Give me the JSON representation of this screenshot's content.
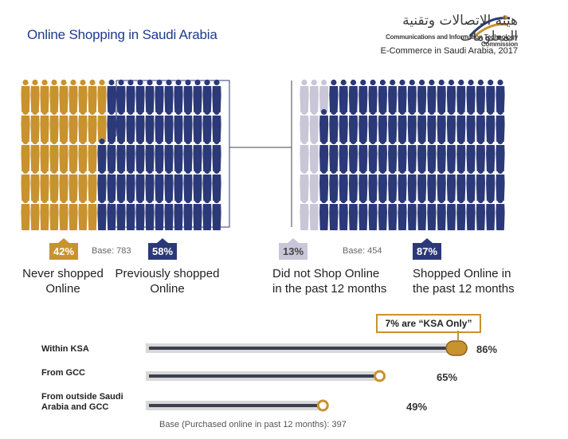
{
  "header": {
    "title": "Online Shopping in Saudi Arabia",
    "logo_arabic": "هيئة الاتصالات وتقنية المعلومات",
    "logo_english": "Communications and Information Technology Commission",
    "subtitle": "E-Commerce in Saudi Arabia, 2017"
  },
  "colors": {
    "gold": "#c8922e",
    "navy": "#2b3978",
    "light": "#c9c6d8",
    "track": "#d8d8d8",
    "bar": "#3c3f4e"
  },
  "left_panel": {
    "never": {
      "pct": "42%",
      "label_line1": "Never shopped",
      "label_line2": "Online"
    },
    "previously": {
      "pct": "58%",
      "label_line1": "Previously shopped",
      "label_line2": "Online"
    },
    "base": "Base: 783"
  },
  "right_panel": {
    "did_not": {
      "pct": "13%",
      "label_line1": "Did not Shop Online",
      "label_line2": "in the past 12 months"
    },
    "shopped": {
      "pct": "87%",
      "label_line1": "Shopped Online in",
      "label_line2": "the past 12 months"
    },
    "base": "Base: 454"
  },
  "callout": "7% are “KSA Only”",
  "chart_data": [
    {
      "type": "pictogram",
      "categories": [
        "Never shopped Online",
        "Previously shopped Online"
      ],
      "values": [
        42,
        58
      ],
      "unit": "%",
      "base": 783
    },
    {
      "type": "pictogram",
      "categories": [
        "Did not Shop Online in the past 12 months",
        "Shopped Online in the past 12 months"
      ],
      "values": [
        13,
        87
      ],
      "unit": "%",
      "base": 454
    },
    {
      "type": "bar",
      "orientation": "horizontal",
      "categories": [
        "Within KSA",
        "From GCC",
        "From outside Saudi Arabia and GCC"
      ],
      "values": [
        86,
        65,
        49
      ],
      "value_labels": [
        "86%",
        "65%",
        "49%"
      ],
      "xlim": [
        0,
        100
      ],
      "annotation": "7% are “KSA Only”",
      "footnote": "Base (Purchased online in past 12 months): 397"
    }
  ]
}
